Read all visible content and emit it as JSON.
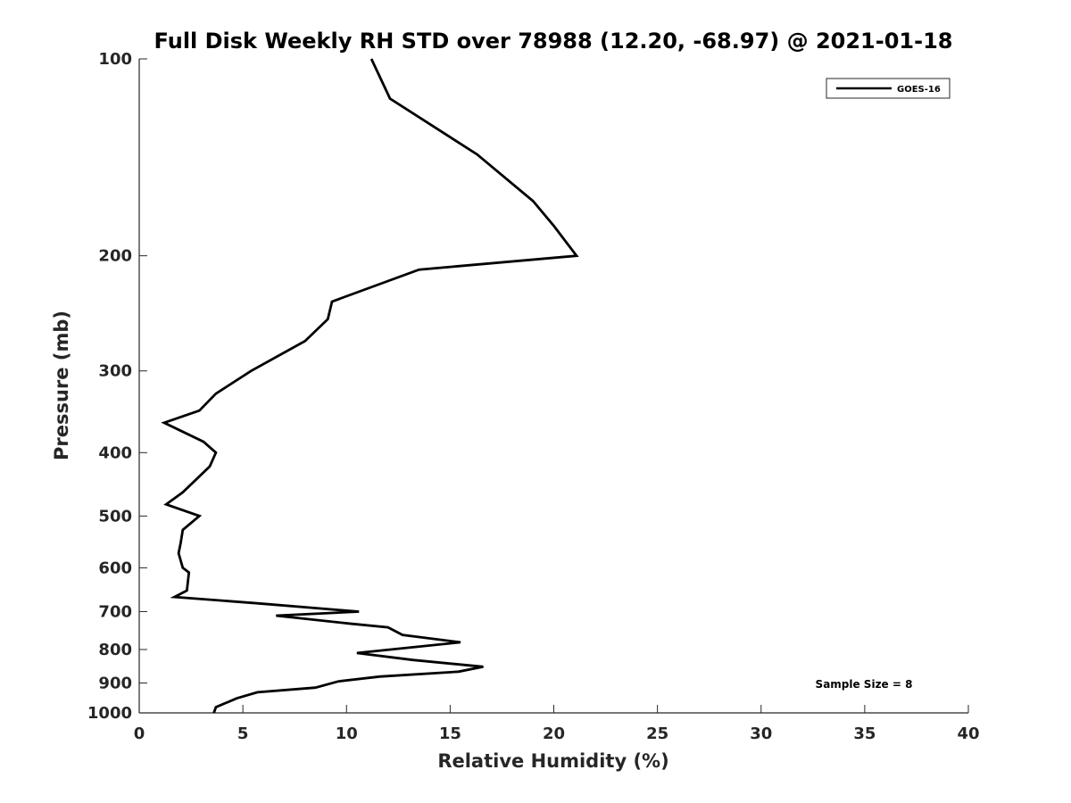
{
  "chart_data": {
    "type": "line",
    "title": "Full Disk Weekly RH STD over 78988 (12.20, -68.97) @ 2021-01-18",
    "xlabel": "Relative Humidity (%)",
    "ylabel": "Pressure (mb)",
    "xlim": [
      0,
      40
    ],
    "ylim": [
      100,
      1000
    ],
    "y_scale": "log",
    "y_reversed": true,
    "x_ticks": [
      "0",
      "5",
      "10",
      "15",
      "20",
      "25",
      "30",
      "35",
      "40"
    ],
    "y_ticks": [
      "100",
      "200",
      "300",
      "400",
      "500",
      "600",
      "700",
      "800",
      "900",
      "1000"
    ],
    "grid": false,
    "legend_position": "top-right",
    "series": [
      {
        "name": "GOES-16",
        "color": "#000000",
        "x": [
          11.2,
          12.1,
          16.3,
          19.0,
          20.0,
          21.1,
          13.5,
          9.3,
          9.1,
          8.0,
          5.4,
          3.7,
          2.9,
          1.2,
          3.1,
          3.7,
          3.4,
          2.1,
          1.3,
          2.9,
          2.1,
          2.0,
          1.9,
          2.1,
          2.4,
          2.3,
          1.7,
          5.7,
          10.6,
          6.6,
          10.1,
          12.0,
          12.7,
          15.5,
          10.5,
          13.2,
          16.6,
          15.4,
          11.6,
          9.6,
          8.5,
          5.7,
          4.7,
          3.7,
          3.6
        ],
        "y": [
          100,
          115,
          140,
          165,
          180,
          200,
          210,
          235,
          250,
          270,
          300,
          325,
          345,
          360,
          385,
          400,
          420,
          460,
          480,
          500,
          525,
          550,
          570,
          600,
          610,
          650,
          665,
          680,
          700,
          710,
          730,
          740,
          760,
          780,
          810,
          830,
          850,
          865,
          880,
          895,
          915,
          930,
          950,
          980,
          1000
        ]
      }
    ],
    "annotations": [
      "Sample Size = 8"
    ]
  }
}
